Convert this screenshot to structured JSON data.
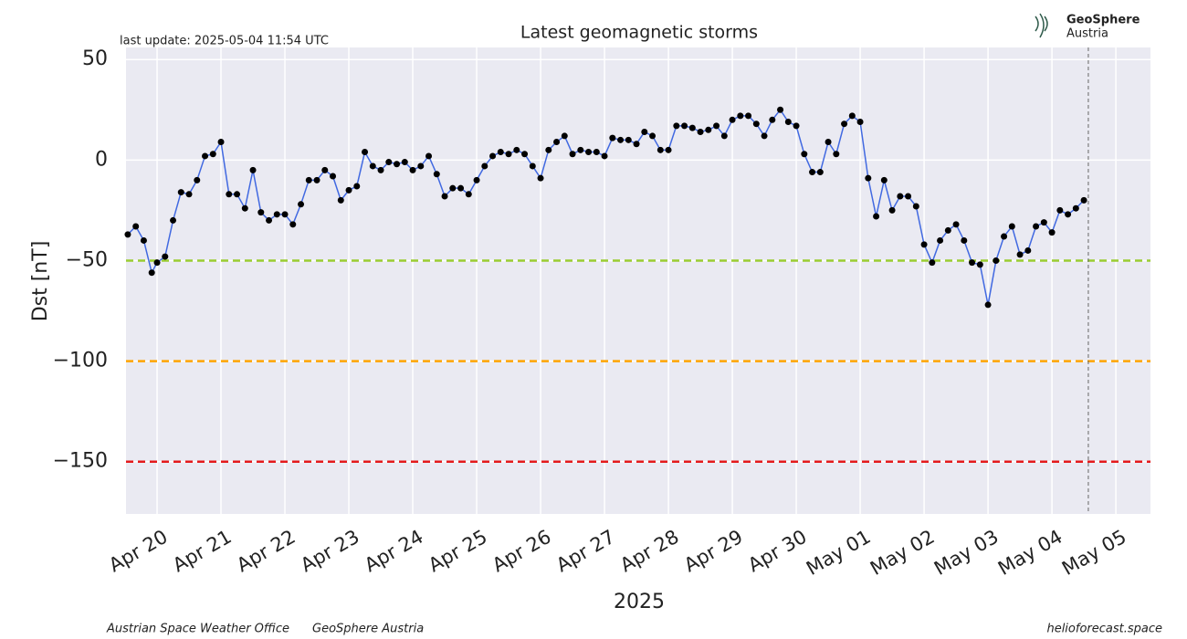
{
  "chart_data": {
    "type": "line",
    "title": "Latest geomagnetic storms",
    "last_update": "last update: 2025-05-04 11:54 UTC",
    "ylabel": "Dst [nT]",
    "xlabel": "2025",
    "footer_left": "Austrian Space Weather Office",
    "footer_mid": "GeoSphere Austria",
    "footer_right": "helioforecast.space",
    "logo": {
      "line1": "GeoSphere",
      "line2": "Austria"
    },
    "color": "#4169e1",
    "marker_color": "#000000",
    "grid": true,
    "ylim": [
      -176,
      56
    ],
    "yticks": [
      50,
      {
        "value": 0,
        "label": "0"
      },
      {
        "value": -50,
        "label": "−50"
      },
      {
        "value": -100,
        "label": "−100"
      },
      {
        "value": -150,
        "label": "−150"
      }
    ],
    "xlim": [
      "2025-04-19T12:20",
      "2025-05-05T13:00"
    ],
    "xticks": [
      {
        "value": "2025-04-20T00:00",
        "label": "Apr 20"
      },
      {
        "value": "2025-04-21T00:00",
        "label": "Apr 21"
      },
      {
        "value": "2025-04-22T00:00",
        "label": "Apr 22"
      },
      {
        "value": "2025-04-23T00:00",
        "label": "Apr 23"
      },
      {
        "value": "2025-04-24T00:00",
        "label": "Apr 24"
      },
      {
        "value": "2025-04-25T00:00",
        "label": "Apr 25"
      },
      {
        "value": "2025-04-26T00:00",
        "label": "Apr 26"
      },
      {
        "value": "2025-04-27T00:00",
        "label": "Apr 27"
      },
      {
        "value": "2025-04-28T00:00",
        "label": "Apr 28"
      },
      {
        "value": "2025-04-29T00:00",
        "label": "Apr 29"
      },
      {
        "value": "2025-04-30T00:00",
        "label": "Apr 30"
      },
      {
        "value": "2025-05-01T00:00",
        "label": "May 01"
      },
      {
        "value": "2025-05-02T00:00",
        "label": "May 02"
      },
      {
        "value": "2025-05-03T00:00",
        "label": "May 03"
      },
      {
        "value": "2025-05-04T00:00",
        "label": "May 04"
      },
      {
        "value": "2025-05-05T00:00",
        "label": "May 05"
      }
    ],
    "hlines": [
      {
        "value": -50,
        "color": "#9acd32"
      },
      {
        "value": -100,
        "color": "#ffa500"
      },
      {
        "value": -150,
        "color": "#e41a1c"
      }
    ],
    "vline": {
      "value": "2025-05-04T13:40",
      "color": "#666666"
    },
    "x": [
      "2025-04-19T13:00",
      "2025-04-19T16:00",
      "2025-04-19T19:00",
      "2025-04-19T22:00",
      "2025-04-20T00:00",
      "2025-04-20T03:00",
      "2025-04-20T06:00",
      "2025-04-20T09:00",
      "2025-04-20T12:00",
      "2025-04-20T15:00",
      "2025-04-20T18:00",
      "2025-04-20T21:00",
      "2025-04-21T00:00",
      "2025-04-21T03:00",
      "2025-04-21T06:00",
      "2025-04-21T09:00",
      "2025-04-21T12:00",
      "2025-04-21T15:00",
      "2025-04-21T18:00",
      "2025-04-21T21:00",
      "2025-04-22T00:00",
      "2025-04-22T03:00",
      "2025-04-22T06:00",
      "2025-04-22T09:00",
      "2025-04-22T12:00",
      "2025-04-22T15:00",
      "2025-04-22T18:00",
      "2025-04-22T21:00",
      "2025-04-23T00:00",
      "2025-04-23T03:00",
      "2025-04-23T06:00",
      "2025-04-23T09:00",
      "2025-04-23T12:00",
      "2025-04-23T15:00",
      "2025-04-23T18:00",
      "2025-04-23T21:00",
      "2025-04-24T00:00",
      "2025-04-24T03:00",
      "2025-04-24T06:00",
      "2025-04-24T09:00",
      "2025-04-24T12:00",
      "2025-04-24T15:00",
      "2025-04-24T18:00",
      "2025-04-24T21:00",
      "2025-04-25T00:00",
      "2025-04-25T03:00",
      "2025-04-25T06:00",
      "2025-04-25T09:00",
      "2025-04-25T12:00",
      "2025-04-25T15:00",
      "2025-04-25T18:00",
      "2025-04-25T21:00",
      "2025-04-26T00:00",
      "2025-04-26T03:00",
      "2025-04-26T06:00",
      "2025-04-26T09:00",
      "2025-04-26T12:00",
      "2025-04-26T15:00",
      "2025-04-26T18:00",
      "2025-04-26T21:00",
      "2025-04-27T00:00",
      "2025-04-27T03:00",
      "2025-04-27T06:00",
      "2025-04-27T09:00",
      "2025-04-27T12:00",
      "2025-04-27T15:00",
      "2025-04-27T18:00",
      "2025-04-27T21:00",
      "2025-04-28T00:00",
      "2025-04-28T03:00",
      "2025-04-28T06:00",
      "2025-04-28T09:00",
      "2025-04-28T12:00",
      "2025-04-28T15:00",
      "2025-04-28T18:00",
      "2025-04-28T21:00",
      "2025-04-29T00:00",
      "2025-04-29T03:00",
      "2025-04-29T06:00",
      "2025-04-29T09:00",
      "2025-04-29T12:00",
      "2025-04-29T15:00",
      "2025-04-29T18:00",
      "2025-04-29T21:00",
      "2025-04-30T00:00",
      "2025-04-30T03:00",
      "2025-04-30T06:00",
      "2025-04-30T09:00",
      "2025-04-30T12:00",
      "2025-04-30T15:00",
      "2025-04-30T18:00",
      "2025-04-30T21:00",
      "2025-05-01T00:00",
      "2025-05-01T03:00",
      "2025-05-01T06:00",
      "2025-05-01T09:00",
      "2025-05-01T12:00",
      "2025-05-01T15:00",
      "2025-05-01T18:00",
      "2025-05-01T21:00",
      "2025-05-02T00:00",
      "2025-05-02T03:00",
      "2025-05-02T06:00",
      "2025-05-02T09:00",
      "2025-05-02T12:00",
      "2025-05-02T15:00",
      "2025-05-02T18:00",
      "2025-05-02T21:00",
      "2025-05-03T00:00",
      "2025-05-03T03:00",
      "2025-05-03T06:00",
      "2025-05-03T09:00",
      "2025-05-03T12:00",
      "2025-05-03T15:00",
      "2025-05-03T18:00",
      "2025-05-03T21:00",
      "2025-05-04T00:00",
      "2025-05-04T03:00",
      "2025-05-04T06:00",
      "2025-05-04T09:00",
      "2025-05-04T12:00"
    ],
    "values": [
      -37,
      -33,
      -40,
      -56,
      -51,
      -48,
      -30,
      -16,
      -17,
      -10,
      2,
      3,
      9,
      -17,
      -17,
      -24,
      -5,
      -26,
      -30,
      -27,
      -27,
      -32,
      -22,
      -10,
      -10,
      -5,
      -8,
      -20,
      -15,
      -13,
      4,
      -3,
      -5,
      -1,
      -2,
      -1,
      -5,
      -3,
      2,
      -7,
      -18,
      -14,
      -14,
      -17,
      -10,
      -3,
      2,
      4,
      3,
      5,
      3,
      -3,
      -9,
      5,
      9,
      12,
      3,
      5,
      4,
      4,
      2,
      11,
      10,
      10,
      8,
      14,
      12,
      5,
      5,
      17,
      17,
      16,
      14,
      15,
      17,
      12,
      20,
      22,
      22,
      18,
      12,
      20,
      25,
      19,
      17,
      3,
      -6,
      -6,
      9,
      3,
      18,
      22,
      19,
      -9,
      -28,
      -10,
      -25,
      -18,
      -18,
      -23,
      -42,
      -51,
      -40,
      -35,
      -32,
      -40,
      -51,
      -52,
      -72,
      -50,
      -38,
      -33,
      -47,
      -45,
      -33,
      -31,
      -36,
      -25,
      -27,
      -24,
      -20
    ]
  }
}
